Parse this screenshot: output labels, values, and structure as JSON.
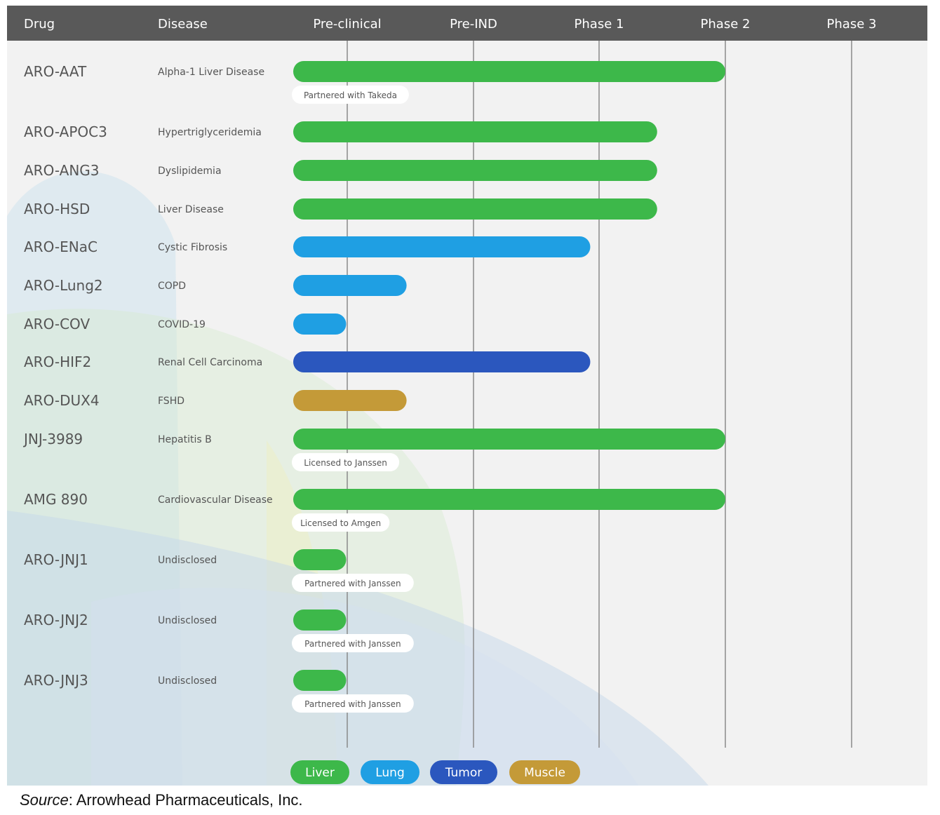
{
  "chart_data": {
    "type": "bar",
    "orientation": "horizontal",
    "columns": [
      "Drug",
      "Disease"
    ],
    "phases": [
      "Pre-clinical",
      "Pre-IND",
      "Phase 1",
      "Phase 2",
      "Phase 3"
    ],
    "categories": [
      "Liver",
      "Lung",
      "Tumor",
      "Muscle"
    ],
    "colors": {
      "Liver": "#3db84a",
      "Lung": "#1f9fe3",
      "Tumor": "#2b57be",
      "Muscle": "#c49a38",
      "header": "#595959"
    },
    "rows": [
      {
        "drug": "ARO-AAT",
        "disease": "Alpha-1 Liver Disease",
        "category": "Liver",
        "progress": 4.0,
        "note": "Partnered with Takeda"
      },
      {
        "drug": "ARO-APOC3",
        "disease": "Hypertriglyceridemia",
        "category": "Liver",
        "progress": 3.46,
        "note": ""
      },
      {
        "drug": "ARO-ANG3",
        "disease": "Dyslipidemia",
        "category": "Liver",
        "progress": 3.46,
        "note": ""
      },
      {
        "drug": "ARO-HSD",
        "disease": "Liver Disease",
        "category": "Liver",
        "progress": 3.46,
        "note": ""
      },
      {
        "drug": "ARO-ENaC",
        "disease": "Cystic Fibrosis",
        "category": "Lung",
        "progress": 2.93,
        "note": ""
      },
      {
        "drug": "ARO-Lung2",
        "disease": "COPD",
        "category": "Lung",
        "progress": 1.47,
        "note": ""
      },
      {
        "drug": "ARO-COV",
        "disease": "COVID-19",
        "category": "Lung",
        "progress": 0.98,
        "note": ""
      },
      {
        "drug": "ARO-HIF2",
        "disease": "Renal Cell Carcinoma",
        "category": "Tumor",
        "progress": 2.93,
        "note": ""
      },
      {
        "drug": "ARO-DUX4",
        "disease": "FSHD",
        "category": "Muscle",
        "progress": 1.47,
        "note": ""
      },
      {
        "drug": "JNJ-3989",
        "disease": "Hepatitis B",
        "category": "Liver",
        "progress": 4.0,
        "note": "Licensed to Janssen"
      },
      {
        "drug": "AMG 890",
        "disease": "Cardiovascular Disease",
        "category": "Liver",
        "progress": 4.0,
        "note": "Licensed to Amgen"
      },
      {
        "drug": "ARO-JNJ1",
        "disease": "Undisclosed",
        "category": "Liver",
        "progress": 0.98,
        "note": "Partnered with Janssen"
      },
      {
        "drug": "ARO-JNJ2",
        "disease": "Undisclosed",
        "category": "Liver",
        "progress": 0.98,
        "note": "Partnered with Janssen"
      },
      {
        "drug": "ARO-JNJ3",
        "disease": "Undisclosed",
        "category": "Liver",
        "progress": 0.98,
        "note": "Partnered with Janssen"
      }
    ],
    "legend_placement": "bottom",
    "grid": true
  },
  "source": {
    "label": "Source",
    "text": ": Arrowhead Pharmaceuticals, Inc."
  }
}
